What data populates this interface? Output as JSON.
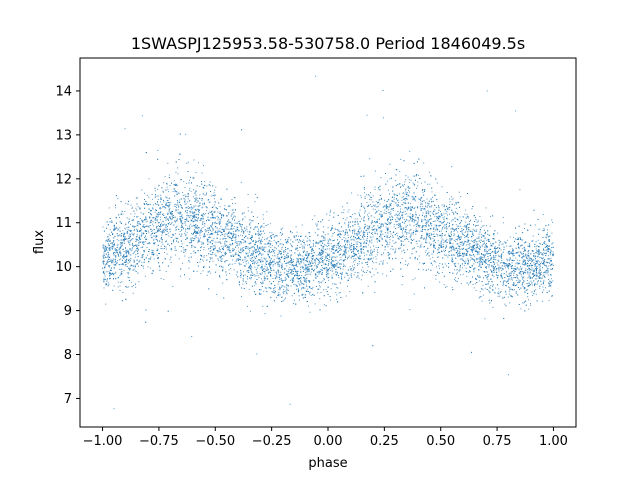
{
  "chart_data": {
    "type": "scatter",
    "title": "1SWASPJ125953.58-530758.0 Period 1846049.5s",
    "xlabel": "phase",
    "ylabel": "flux",
    "xlim": [
      -1.1,
      1.1
    ],
    "ylim": [
      6.35,
      14.75
    ],
    "x_ticks": [
      -1.0,
      -0.75,
      -0.5,
      -0.25,
      0.0,
      0.25,
      0.5,
      0.75,
      1.0
    ],
    "x_tick_labels": [
      "−1.00",
      "−0.75",
      "−0.50",
      "−0.25",
      "0.00",
      "0.25",
      "0.50",
      "0.75",
      "1.00"
    ],
    "y_ticks": [
      7,
      8,
      9,
      10,
      11,
      12,
      13,
      14
    ],
    "y_tick_labels": [
      "7",
      "8",
      "9",
      "10",
      "11",
      "12",
      "13",
      "14"
    ],
    "grid": false,
    "legend": "none",
    "marker_color": "#1f77b4",
    "series": [
      {
        "phase": [
          -1.0,
          -0.9,
          -0.8,
          -0.7,
          -0.6,
          -0.5,
          -0.4,
          -0.3,
          -0.2,
          -0.1,
          0.0,
          0.1,
          0.2,
          0.3,
          0.4,
          0.5,
          0.6,
          0.7,
          0.8,
          0.9,
          1.0
        ],
        "flux_median": [
          10.2,
          10.4,
          10.8,
          11.2,
          11.1,
          10.8,
          10.5,
          10.2,
          9.95,
          10.0,
          10.2,
          10.4,
          10.8,
          11.2,
          11.1,
          10.8,
          10.5,
          10.2,
          9.95,
          10.0,
          10.2
        ],
        "flux_spread": [
          0.55,
          0.6,
          0.65,
          0.7,
          0.7,
          0.65,
          0.6,
          0.55,
          0.5,
          0.5,
          0.55,
          0.6,
          0.65,
          0.7,
          0.7,
          0.65,
          0.6,
          0.55,
          0.5,
          0.5,
          0.55
        ],
        "flux_min": 6.75,
        "flux_max": 14.35
      }
    ]
  }
}
